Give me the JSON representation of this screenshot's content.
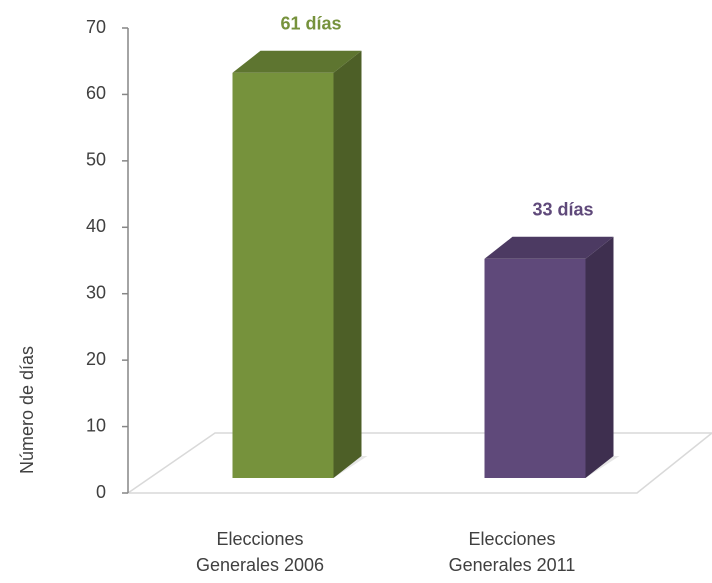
{
  "chart_data": {
    "type": "bar3d",
    "y_label": "Número de días",
    "categories": [
      "Elecciones Generales 2006",
      "Elecciones Generales 2011"
    ],
    "values": [
      61,
      33
    ],
    "value_labels": [
      "61 días",
      "33 días"
    ],
    "colors": [
      "#76923c",
      "#5f497a"
    ],
    "ylim": [
      0,
      70
    ],
    "yticks": [
      0,
      10,
      20,
      30,
      40,
      50,
      60,
      70
    ]
  }
}
